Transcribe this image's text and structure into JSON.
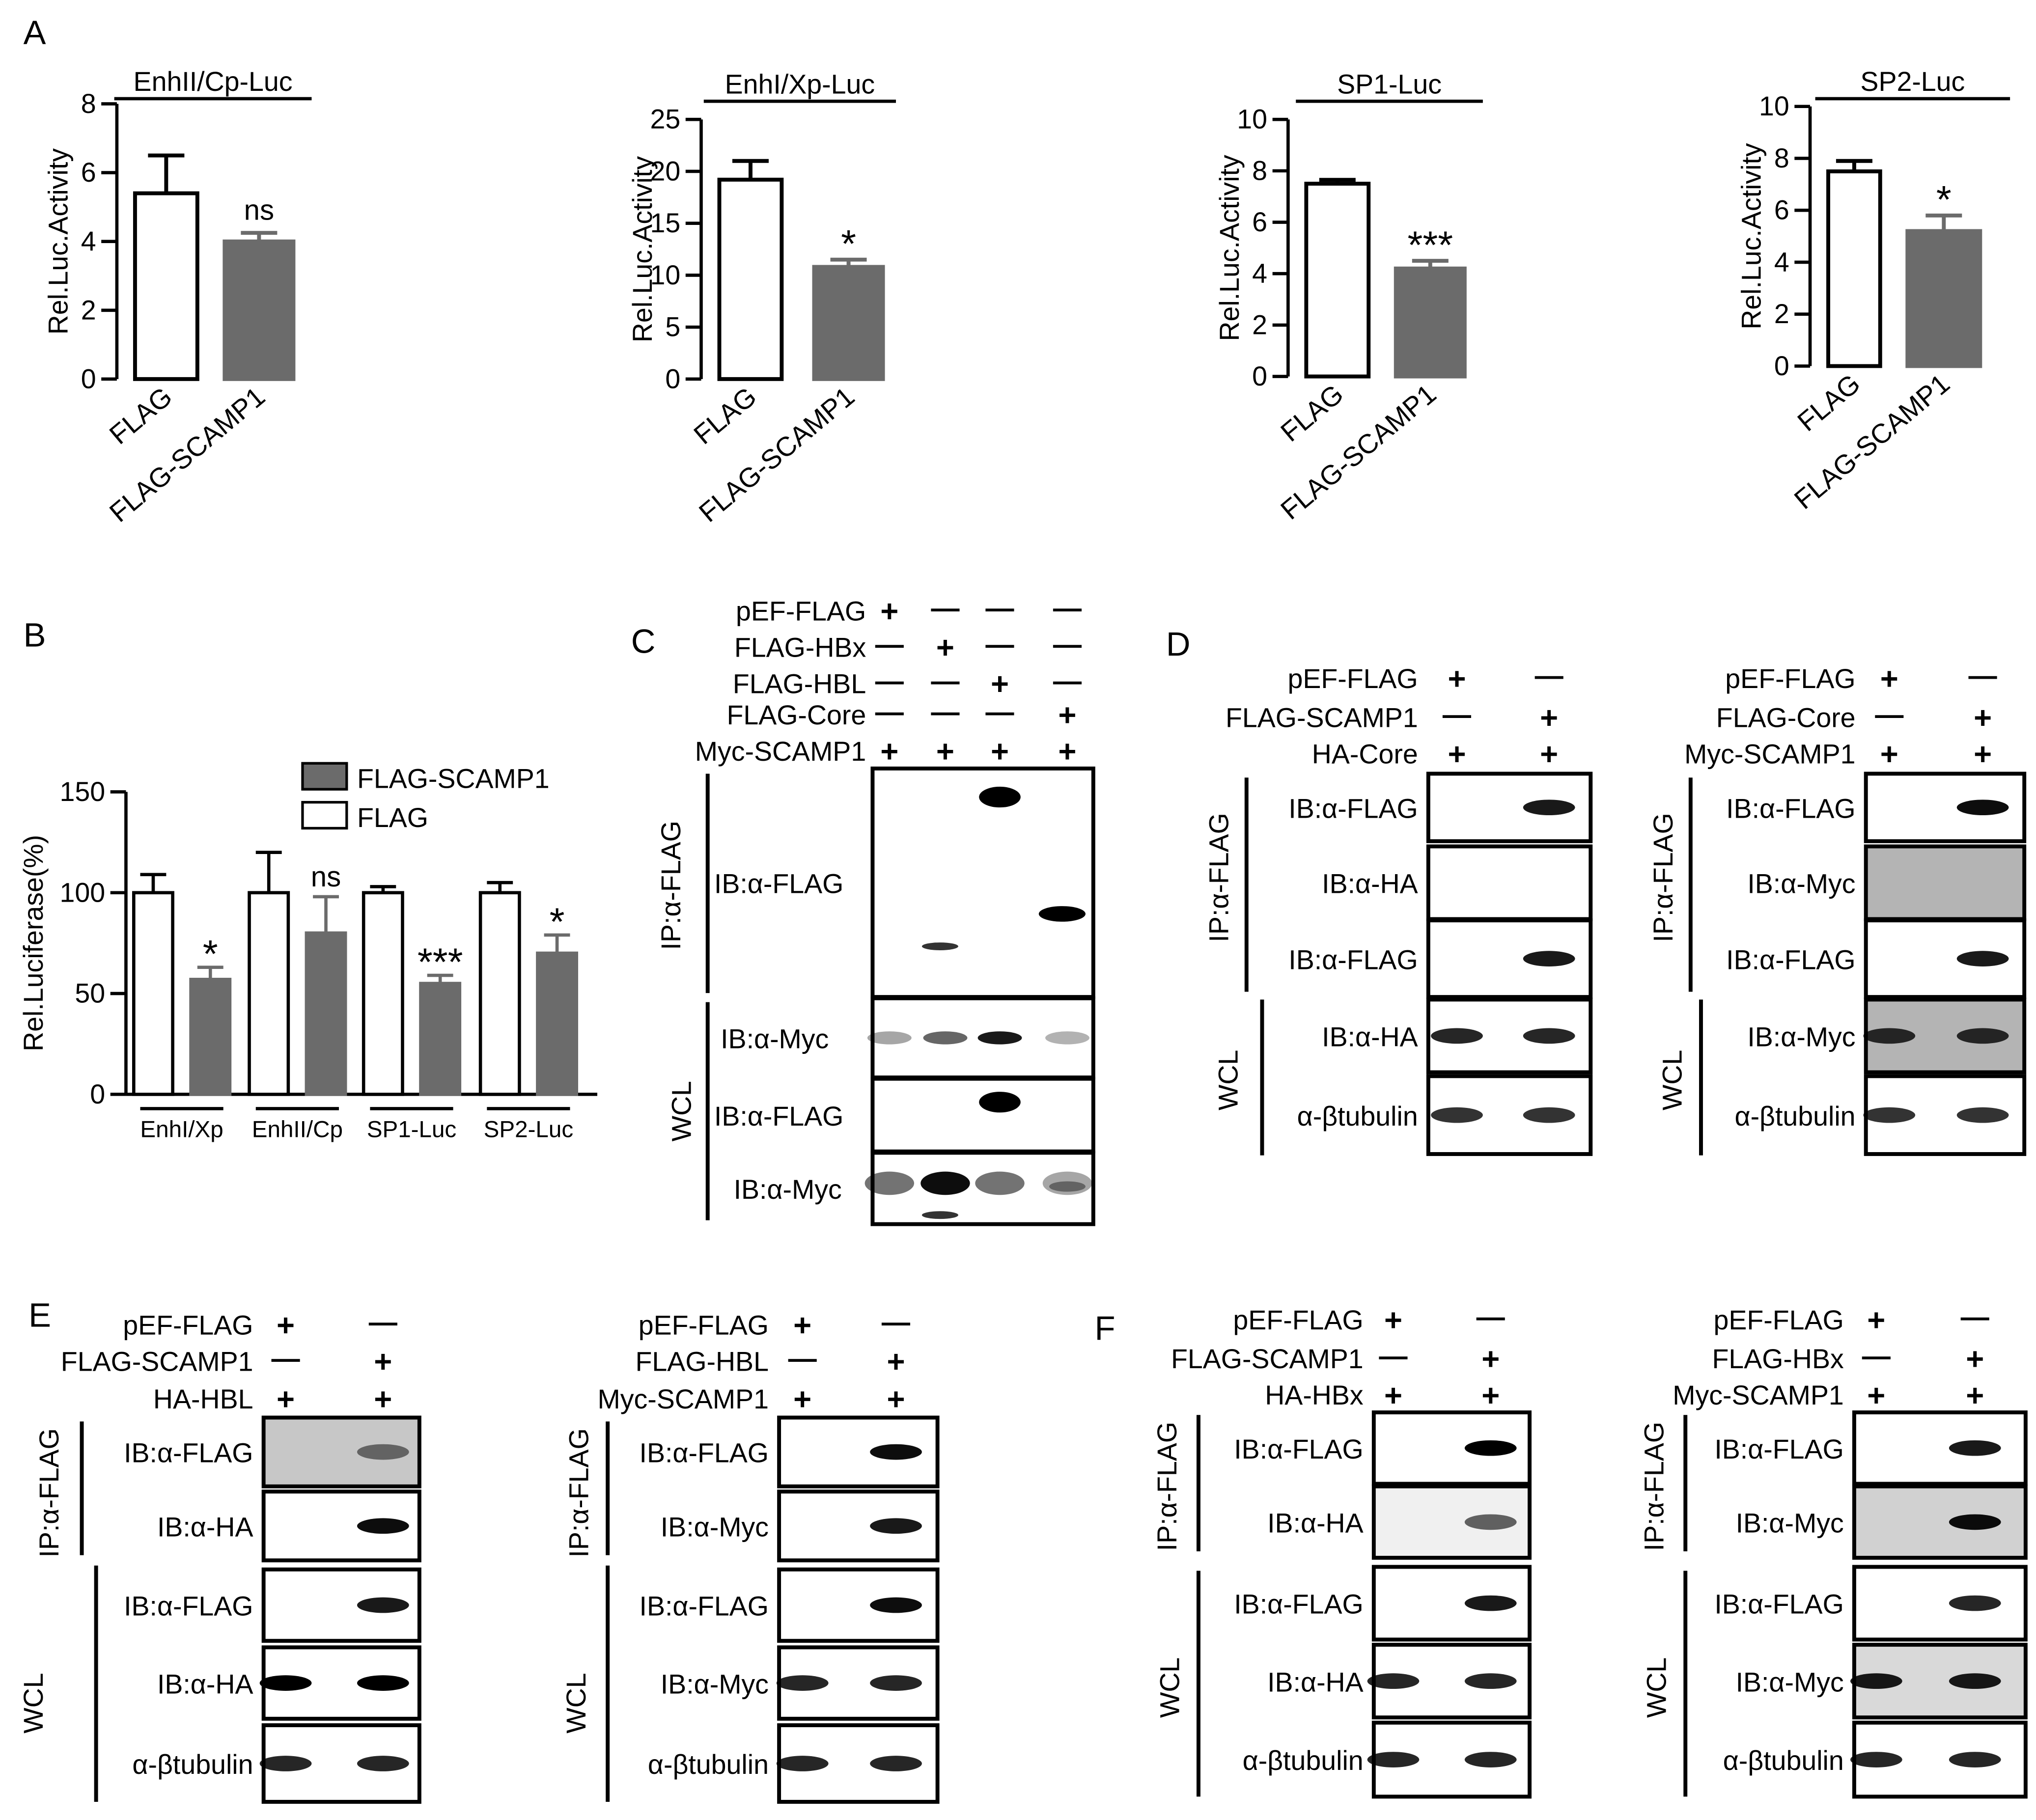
{
  "panels": {
    "A": "A",
    "B": "B",
    "C": "C",
    "D": "D",
    "E": "E",
    "F": "F"
  },
  "colors": {
    "filled": "#6b6b6b",
    "open": "#ffffff",
    "axis": "#000000"
  },
  "chart_data": [
    {
      "type": "bar",
      "title": "EnhII/Cp-Luc",
      "categories": [
        "FLAG",
        "FLAG-SCAMP1"
      ],
      "values": [
        5.4,
        4.0
      ],
      "errors": [
        1.1,
        0.25
      ],
      "fills": [
        "open",
        "filled"
      ],
      "significance": [
        "",
        "ns"
      ],
      "ylabel": "Rel.Luc.Activity",
      "ylim": [
        0,
        8
      ],
      "yticks": [
        "0",
        "2",
        "4",
        "6",
        "8"
      ]
    },
    {
      "type": "bar",
      "title": "EnhI/Xp-Luc",
      "categories": [
        "FLAG",
        "FLAG-SCAMP1"
      ],
      "values": [
        19.2,
        10.8
      ],
      "errors": [
        1.8,
        0.7
      ],
      "fills": [
        "open",
        "filled"
      ],
      "significance": [
        "",
        "*"
      ],
      "ylabel": "Rel.Luc.Activity",
      "ylim": [
        0,
        25
      ],
      "yticks": [
        "0",
        "5",
        "10",
        "15",
        "20",
        "25"
      ]
    },
    {
      "type": "bar",
      "title": "SP1-Luc",
      "categories": [
        "FLAG",
        "FLAG-SCAMP1"
      ],
      "values": [
        7.5,
        4.2
      ],
      "errors": [
        0.15,
        0.3
      ],
      "fills": [
        "open",
        "filled"
      ],
      "significance": [
        "",
        "***"
      ],
      "ylabel": "Rel.Luc.Activity",
      "ylim": [
        0,
        10
      ],
      "yticks": [
        "0",
        "2",
        "4",
        "6",
        "8",
        "10"
      ]
    },
    {
      "type": "bar",
      "title": "SP2-Luc",
      "categories": [
        "FLAG",
        "FLAG-SCAMP1"
      ],
      "values": [
        7.5,
        5.2
      ],
      "errors": [
        0.4,
        0.6
      ],
      "fills": [
        "open",
        "filled"
      ],
      "significance": [
        "",
        "*"
      ],
      "ylabel": "Rel.Luc.Activity",
      "ylim": [
        0,
        10
      ],
      "yticks": [
        "0",
        "2",
        "4",
        "6",
        "8",
        "10"
      ]
    },
    {
      "type": "bar",
      "title": "",
      "ylabel": "Rel.Luciferase(%)",
      "ylim": [
        0,
        150
      ],
      "yticks": [
        "0",
        "50",
        "100",
        "150"
      ],
      "categories": [
        "EnhI/Xp",
        "EnhII/Cp",
        "SP1-Luc",
        "SP2-Luc"
      ],
      "series": [
        {
          "name": "FLAG",
          "fill": "open",
          "values": [
            100,
            100,
            100,
            100
          ],
          "errors": [
            9,
            20,
            3,
            5
          ]
        },
        {
          "name": "FLAG-SCAMP1",
          "fill": "filled",
          "values": [
            57,
            80,
            55,
            70
          ],
          "errors": [
            6,
            18,
            4,
            9
          ]
        }
      ],
      "significance": [
        "*",
        "ns",
        "***",
        "*"
      ],
      "legend": [
        "FLAG-SCAMP1",
        "FLAG"
      ],
      "legend_position": "top-right"
    }
  ],
  "blots": {
    "C": {
      "rows": [
        "pEF-FLAG",
        "FLAG-HBx",
        "FLAG-HBL",
        "FLAG-Core",
        "Myc-SCAMP1"
      ],
      "marks": [
        [
          "+",
          "—",
          "—",
          "—"
        ],
        [
          "—",
          "+",
          "—",
          "—"
        ],
        [
          "—",
          "—",
          "+",
          "—"
        ],
        [
          "—",
          "—",
          "—",
          "+"
        ],
        [
          "+",
          "+",
          "+",
          "+"
        ]
      ],
      "groups": [
        "IP:α-FLAG",
        "WCL"
      ],
      "boxes": [
        "IB:α-FLAG",
        "IB:α-Myc",
        "IB:α-FLAG",
        "IB:α-Myc"
      ]
    },
    "D1": {
      "rows": [
        "pEF-FLAG",
        "FLAG-SCAMP1",
        "HA-Core"
      ],
      "marks": [
        [
          "+",
          "—"
        ],
        [
          "—",
          "+"
        ],
        [
          "+",
          "+"
        ]
      ],
      "groups": [
        "IP:α-FLAG",
        "WCL"
      ],
      "boxes": [
        "IB:α-FLAG",
        "IB:α-HA",
        "IB:α-FLAG",
        "IB:α-HA",
        "α-βtubulin"
      ]
    },
    "D2": {
      "rows": [
        "pEF-FLAG",
        "FLAG-Core",
        "Myc-SCAMP1"
      ],
      "marks": [
        [
          "+",
          "—"
        ],
        [
          "—",
          "+"
        ],
        [
          "+",
          "+"
        ]
      ],
      "groups": [
        "IP:α-FLAG",
        "WCL"
      ],
      "boxes": [
        "IB:α-FLAG",
        "IB:α-Myc",
        "IB:α-FLAG",
        "IB:α-Myc",
        "α-βtubulin"
      ]
    },
    "E1": {
      "rows": [
        "pEF-FLAG",
        "FLAG-SCAMP1",
        "HA-HBL"
      ],
      "marks": [
        [
          "+",
          "—"
        ],
        [
          "—",
          "+"
        ],
        [
          "+",
          "+"
        ]
      ],
      "groups": [
        "IP:α-FLAG",
        "WCL"
      ],
      "boxes": [
        "IB:α-FLAG",
        "IB:α-HA",
        "IB:α-FLAG",
        "IB:α-HA",
        "α-βtubulin"
      ]
    },
    "E2": {
      "rows": [
        "pEF-FLAG",
        "FLAG-HBL",
        "Myc-SCAMP1"
      ],
      "marks": [
        [
          "+",
          "—"
        ],
        [
          "—",
          "+"
        ],
        [
          "+",
          "+"
        ]
      ],
      "groups": [
        "IP:α-FLAG",
        "WCL"
      ],
      "boxes": [
        "IB:α-FLAG",
        "IB:α-Myc",
        "IB:α-FLAG",
        "IB:α-Myc",
        "α-βtubulin"
      ]
    },
    "F1": {
      "rows": [
        "pEF-FLAG",
        "FLAG-SCAMP1",
        "HA-HBx"
      ],
      "marks": [
        [
          "+",
          "—"
        ],
        [
          "—",
          "+"
        ],
        [
          "+",
          "+"
        ]
      ],
      "groups": [
        "IP:α-FLAG",
        "WCL"
      ],
      "boxes": [
        "IB:α-FLAG",
        "IB:α-HA",
        "IB:α-FLAG",
        "IB:α-HA",
        "α-βtubulin"
      ]
    },
    "F2": {
      "rows": [
        "pEF-FLAG",
        "FLAG-HBx",
        "Myc-SCAMP1"
      ],
      "marks": [
        [
          "+",
          "—"
        ],
        [
          "—",
          "+"
        ],
        [
          "+",
          "+"
        ]
      ],
      "groups": [
        "IP:α-FLAG",
        "WCL"
      ],
      "boxes": [
        "IB:α-FLAG",
        "IB:α-Myc",
        "IB:α-FLAG",
        "IB:α-Myc",
        "α-βtubulin"
      ]
    }
  }
}
